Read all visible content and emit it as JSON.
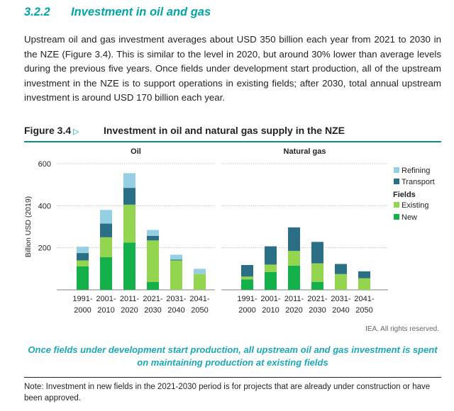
{
  "section": {
    "number": "3.2.2",
    "title": "Investment in oil and gas",
    "paragraph": "Upstream oil and gas investment averages about USD 350 billion each year from 2021 to 2030 in the NZE (Figure 3.4). This is similar to the level in 2020, but around 30% lower than average levels during the previous five years. Once fields under development start production, all of the upstream investment in the NZE is to support operations in existing fields; after 2030, total annual upstream investment is around USD 170 billion each year."
  },
  "figure": {
    "number": "Figure 3.4",
    "marker": "▷",
    "title": "Investment in oil and natural gas supply in the NZE",
    "credit": "IEA. All rights reserved.",
    "takeaway": "Once fields under development start production, all upstream oil and gas investment is spent on maintaining production at existing fields",
    "note": "Note: Investment in new fields in the 2021-2030 period is for projects that are already under construction or have been approved."
  },
  "chart_data": {
    "type": "bar",
    "stacked": true,
    "ylabel": "Billion USD (2019)",
    "ylim": [
      0,
      600
    ],
    "yticks": [
      200,
      400,
      600
    ],
    "grid": "dotted horizontal",
    "categories": [
      [
        "1991-",
        "2000"
      ],
      [
        "2001-",
        "2010"
      ],
      [
        "2011-",
        "2020"
      ],
      [
        "2021-",
        "2030"
      ],
      [
        "2031-",
        "2040"
      ],
      [
        "2041-",
        "2050"
      ]
    ],
    "series_order": [
      "New",
      "Existing",
      "Transport",
      "Refining"
    ],
    "colors": {
      "New": "#14b14b",
      "Existing": "#94d550",
      "Transport": "#2b6f86",
      "Refining": "#94cfe3",
      "grid": "#bdbdbd",
      "axis": "#9a9a9a"
    },
    "panels": [
      {
        "title": "Oil",
        "series": [
          {
            "name": "New",
            "values": [
              112,
              155,
              225,
              37,
              0,
              0
            ]
          },
          {
            "name": "Existing",
            "values": [
              28,
              95,
              180,
              198,
              140,
              75
            ]
          },
          {
            "name": "Transport",
            "values": [
              35,
              65,
              80,
              22,
              4,
              0
            ]
          },
          {
            "name": "Refining",
            "values": [
              30,
              65,
              70,
              28,
              23,
              25
            ]
          }
        ]
      },
      {
        "title": "Natural gas",
        "series": [
          {
            "name": "New",
            "values": [
              50,
              85,
              115,
              38,
              0,
              0
            ]
          },
          {
            "name": "Existing",
            "values": [
              13,
              35,
              70,
              88,
              75,
              55
            ]
          },
          {
            "name": "Transport",
            "values": [
              55,
              87,
              112,
              102,
              48,
              33
            ]
          },
          {
            "name": "Refining",
            "values": [
              0,
              0,
              0,
              0,
              0,
              0
            ]
          }
        ]
      }
    ],
    "legend": {
      "position": "right",
      "items": [
        {
          "label": "Refining",
          "series": "Refining"
        },
        {
          "label": "Transport",
          "series": "Transport"
        },
        {
          "label": "Fields",
          "heading": true
        },
        {
          "label": "Existing",
          "series": "Existing"
        },
        {
          "label": "New",
          "series": "New"
        }
      ]
    }
  }
}
